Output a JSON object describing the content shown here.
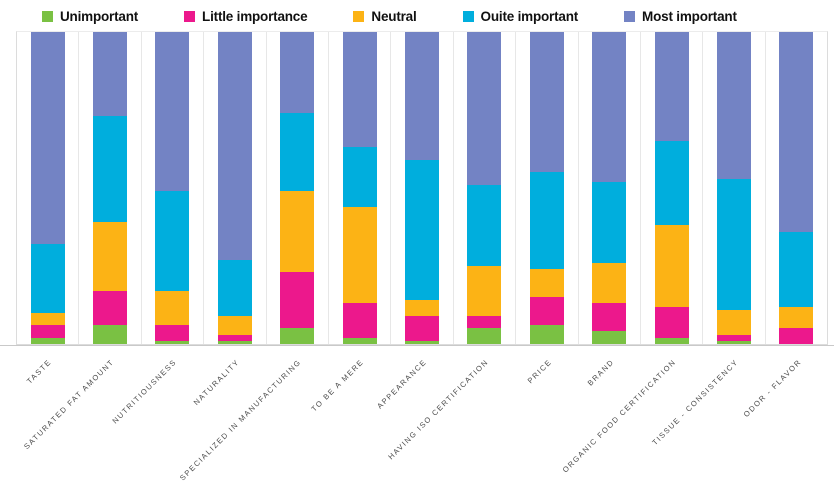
{
  "legend": [
    {
      "label": "Unimportant",
      "color": "#7AC143"
    },
    {
      "label": "Little importance",
      "color": "#EC188C"
    },
    {
      "label": "Neutral",
      "color": "#FCB315"
    },
    {
      "label": "Ouite important",
      "color": "#00AEDD"
    },
    {
      "label": "Most important",
      "color": "#7383C4"
    }
  ],
  "chart_data": {
    "type": "bar",
    "stacked": true,
    "percent_stacked": true,
    "orientation": "vertical",
    "grid": "vertical-category-separators",
    "legend_position": "top",
    "ylim": [
      0,
      100
    ],
    "categories": [
      "TASTE",
      "SATURATED FAT AMOUNT",
      "NUTRITIOUSNESS",
      "NATURALITY",
      "SPECIALIZED IN MANUFACTURING",
      "TO BE A MERE",
      "APPEARANCE",
      "HAVING ISO CERTIFICATION",
      "PRICE",
      "BRAND",
      "ORGANIC FOOD CERTIFICATION",
      "TISSUE - CONSISTENCY",
      "ODOR - FLAVOR"
    ],
    "series": [
      {
        "name": "Unimportant",
        "color": "#7AC143",
        "values": [
          2,
          6,
          1,
          1,
          5,
          2,
          1,
          5,
          6,
          4,
          2,
          1,
          0
        ]
      },
      {
        "name": "Little importance",
        "color": "#EC188C",
        "values": [
          4,
          11,
          5,
          2,
          18,
          11,
          8,
          4,
          9,
          9,
          10,
          2,
          5
        ]
      },
      {
        "name": "Neutral",
        "color": "#FCB315",
        "values": [
          4,
          22,
          11,
          6,
          26,
          31,
          5,
          16,
          9,
          13,
          26,
          8,
          7
        ]
      },
      {
        "name": "Ouite important",
        "color": "#00AEDD",
        "values": [
          22,
          34,
          32,
          18,
          25,
          19,
          45,
          26,
          31,
          26,
          27,
          42,
          24
        ]
      },
      {
        "name": "Most important",
        "color": "#7383C4",
        "values": [
          68,
          27,
          51,
          73,
          26,
          37,
          41,
          49,
          45,
          48,
          35,
          47,
          64
        ]
      }
    ]
  }
}
